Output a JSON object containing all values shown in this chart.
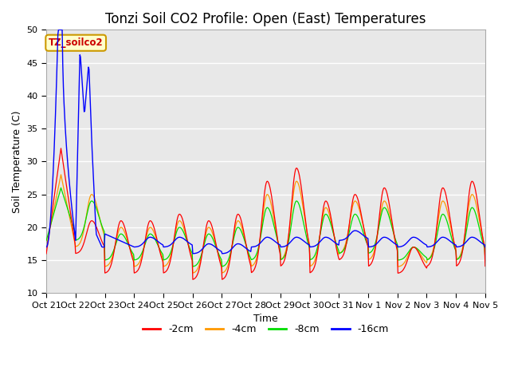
{
  "title": "Tonzi Soil CO2 Profile: Open (East) Temperatures",
  "ylabel": "Soil Temperature (C)",
  "xlabel": "Time",
  "annotation": "TZ_soilco2",
  "ylim": [
    10,
    50
  ],
  "colors": {
    "-2cm": "#ff0000",
    "-4cm": "#ff9900",
    "-8cm": "#00dd00",
    "-16cm": "#0000ff"
  },
  "legend_labels": [
    "-2cm",
    "-4cm",
    "-8cm",
    "-16cm"
  ],
  "xtick_labels": [
    "Oct 21",
    "Oct 22",
    "Oct 23",
    "Oct 24",
    "Oct 25",
    "Oct 26",
    "Oct 27",
    "Oct 28",
    "Oct 29",
    "Oct 30",
    "Oct 31",
    "Nov 1",
    "Nov 2",
    "Nov 3",
    "Nov 4",
    "Nov 5"
  ],
  "background_color": "#e8e8e8",
  "title_fontsize": 12,
  "axis_label_fontsize": 9,
  "tick_fontsize": 8
}
